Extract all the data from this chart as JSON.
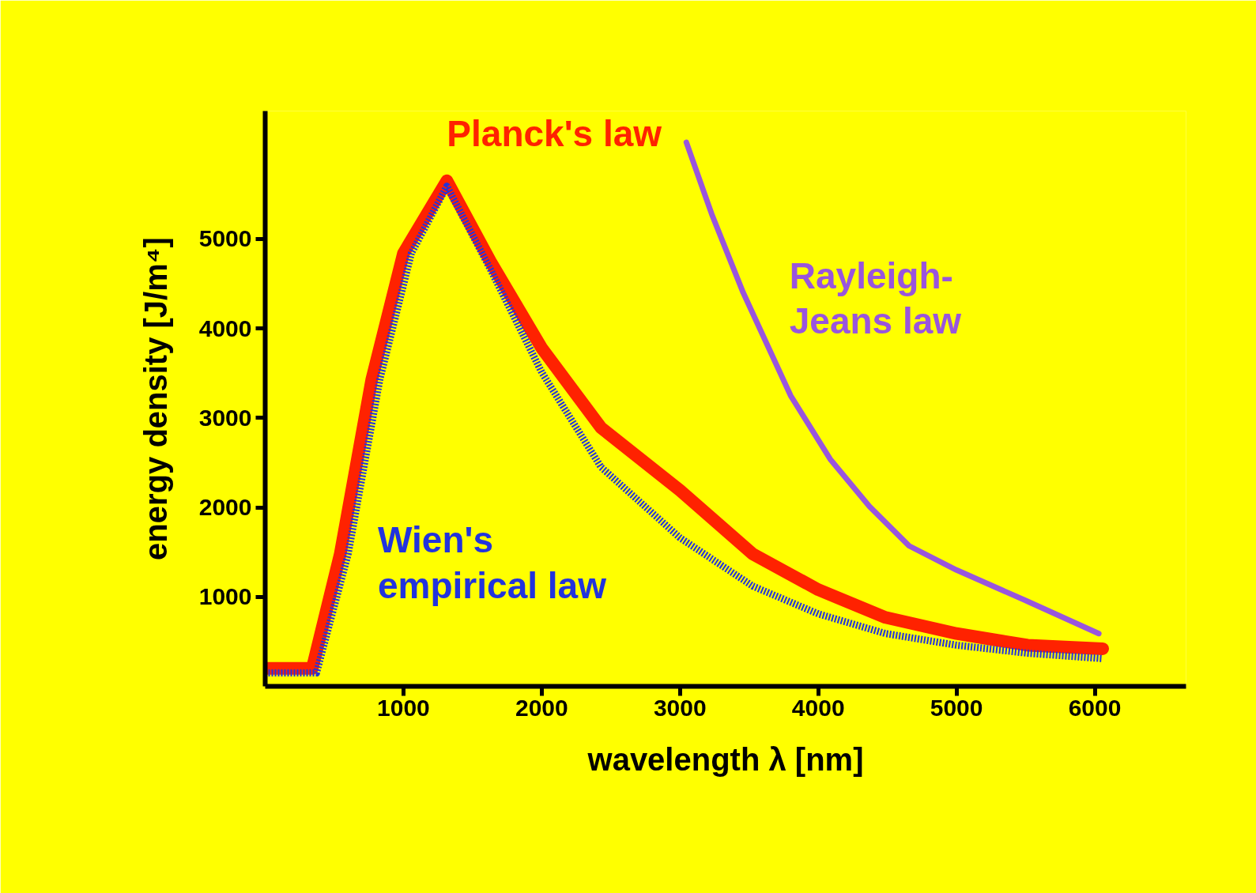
{
  "chart_data": {
    "type": "line",
    "xlabel": "wavelength λ [nm]",
    "ylabel": "energy density [J/m⁴]",
    "xlim": [
      0,
      6660
    ],
    "ylim": [
      0,
      6430
    ],
    "xticks": [
      1000,
      2000,
      3000,
      4000,
      5000,
      6000
    ],
    "yticks": [
      1000,
      2000,
      3000,
      4000,
      5000
    ],
    "grid": false,
    "series": [
      {
        "name": "Planck's law",
        "color": "#ff2200",
        "line_style": "solid",
        "x": [
          0,
          340,
          543,
          771,
          1000,
          1314,
          1629,
          2000,
          2429,
          3000,
          3526,
          4000,
          4486,
          5000,
          5514,
          6057
        ],
        "values": [
          200,
          200,
          1480,
          3430,
          4840,
          5650,
          4750,
          3780,
          2890,
          2190,
          1480,
          1080,
          770,
          590,
          460,
          420
        ]
      },
      {
        "name": "Wien's\nempirical law",
        "color": "#2233dd",
        "line_style": "dotted",
        "x": [
          0,
          371,
          600,
          829,
          1057,
          1314,
          1629,
          2000,
          2429,
          3000,
          3526,
          4000,
          4486,
          5000,
          5514,
          6057
        ],
        "values": [
          150,
          150,
          1480,
          3430,
          4840,
          5590,
          4660,
          3510,
          2450,
          1660,
          1120,
          810,
          590,
          460,
          370,
          310
        ]
      },
      {
        "name": "Rayleigh-\nJeans law",
        "color": "#9955dd",
        "line_style": "solid",
        "x": [
          3046,
          3229,
          3457,
          3800,
          4086,
          4371,
          4657,
          5000,
          5514,
          6029
        ],
        "values": [
          6080,
          5280,
          4400,
          3250,
          2540,
          2010,
          1570,
          1300,
          950,
          590
        ]
      }
    ]
  }
}
